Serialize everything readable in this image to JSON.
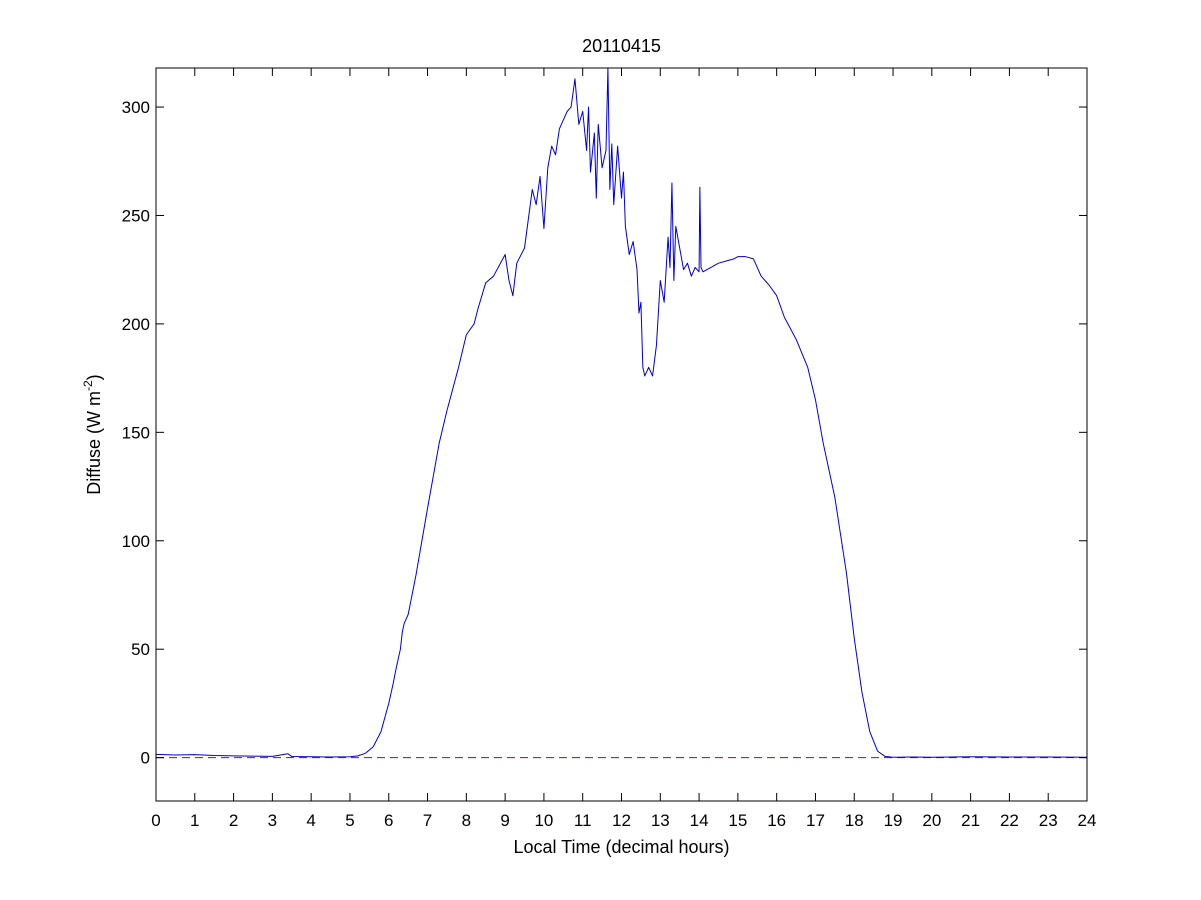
{
  "chart_data": {
    "type": "line",
    "title": "20110415",
    "xlabel": "Local Time (decimal hours)",
    "ylabel": {
      "main": "Diffuse (W m",
      "superscript": "-2",
      "close": ")"
    },
    "xlim": [
      0,
      24
    ],
    "ylim": [
      -20,
      318
    ],
    "xticks": [
      0,
      1,
      2,
      3,
      4,
      5,
      6,
      7,
      8,
      9,
      10,
      11,
      12,
      13,
      14,
      15,
      16,
      17,
      18,
      19,
      20,
      21,
      22,
      23,
      24
    ],
    "yticks": [
      0,
      50,
      100,
      150,
      200,
      250,
      300
    ],
    "grid": false,
    "legend": "none",
    "series": [
      {
        "color": "#0000cc",
        "x": [
          0,
          0.5,
          1.0,
          1.5,
          2.0,
          2.5,
          3.0,
          3.4,
          3.5,
          4.0,
          4.5,
          5.0,
          5.2,
          5.4,
          5.6,
          5.8,
          6.0,
          6.1,
          6.2,
          6.3,
          6.35,
          6.4,
          6.5,
          6.7,
          7.0,
          7.3,
          7.5,
          7.8,
          8.0,
          8.2,
          8.3,
          8.5,
          8.7,
          9.0,
          9.1,
          9.2,
          9.3,
          9.5,
          9.7,
          9.8,
          9.9,
          10.0,
          10.1,
          10.2,
          10.3,
          10.4,
          10.5,
          10.6,
          10.7,
          10.8,
          10.9,
          11.0,
          11.1,
          11.15,
          11.2,
          11.3,
          11.35,
          11.4,
          11.5,
          11.6,
          11.65,
          11.7,
          11.75,
          11.8,
          11.9,
          12.0,
          12.05,
          12.1,
          12.2,
          12.3,
          12.4,
          12.45,
          12.5,
          12.55,
          12.6,
          12.7,
          12.8,
          12.9,
          13.0,
          13.1,
          13.2,
          13.25,
          13.3,
          13.35,
          13.4,
          13.5,
          13.6,
          13.7,
          13.8,
          13.9,
          14.0,
          14.02,
          14.05,
          14.1,
          14.3,
          14.5,
          14.7,
          14.9,
          15.0,
          15.2,
          15.4,
          15.6,
          15.8,
          16.0,
          16.2,
          16.5,
          16.8,
          17.0,
          17.2,
          17.5,
          17.8,
          18.0,
          18.2,
          18.4,
          18.6,
          18.8,
          19.0,
          19.5,
          20.0,
          21.0,
          22.0,
          23.0,
          24.0
        ],
        "values": [
          1.5,
          1.2,
          1.4,
          1.0,
          0.8,
          0.7,
          0.6,
          1.8,
          0.5,
          0.4,
          0.3,
          0.4,
          0.8,
          2,
          5,
          12,
          25,
          33,
          42,
          50,
          58,
          62,
          66,
          84,
          115,
          145,
          160,
          180,
          195,
          200,
          207,
          219,
          222,
          232,
          220,
          213,
          228,
          235,
          262,
          255,
          268,
          244,
          272,
          282,
          278,
          290,
          294,
          298,
          300,
          313,
          292,
          298,
          280,
          300,
          270,
          288,
          258,
          292,
          272,
          280,
          318,
          262,
          283,
          255,
          282,
          258,
          270,
          245,
          232,
          238,
          225,
          205,
          210,
          180,
          176,
          180,
          176,
          190,
          220,
          210,
          240,
          226,
          265,
          220,
          245,
          235,
          225,
          228,
          222,
          226,
          224,
          263,
          226,
          224,
          226,
          228,
          229,
          230,
          231,
          231,
          230,
          222,
          218,
          213,
          203,
          193,
          180,
          165,
          145,
          120,
          85,
          55,
          30,
          12,
          3,
          0.5,
          0.2,
          0.3,
          0.2,
          0.4,
          0.3,
          0.3,
          0.2
        ]
      },
      {
        "color": "#cc0000",
        "dash": "dashed",
        "x": [
          0,
          24
        ],
        "values": [
          0,
          0
        ]
      }
    ]
  }
}
